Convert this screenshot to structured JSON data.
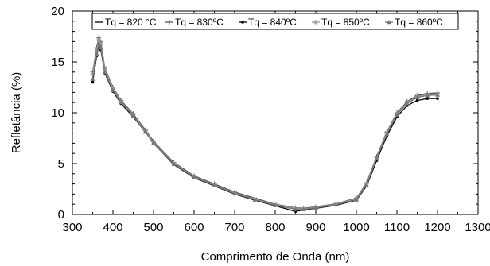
{
  "chart_data": {
    "type": "line",
    "xlabel": "Comprimento de Onda (nm)",
    "ylabel": "Refletância (%)",
    "xlim": [
      300,
      1300
    ],
    "ylim": [
      0,
      20
    ],
    "xticks": [
      300,
      400,
      500,
      600,
      700,
      800,
      900,
      1000,
      1100,
      1200,
      1300
    ],
    "yticks": [
      0,
      5,
      10,
      15,
      20
    ],
    "grid": false,
    "legend_position": "top",
    "series": [
      {
        "name": "Tq = 820 °C",
        "color": "#000000",
        "marker": "none",
        "x": [
          350,
          360,
          365,
          370,
          380,
          400,
          420,
          450,
          480,
          500,
          550,
          600,
          650,
          700,
          750,
          800,
          850,
          870,
          900,
          950,
          1000,
          1025,
          1050,
          1075,
          1100,
          1125,
          1150,
          1175,
          1200
        ],
        "y": [
          13.5,
          16.0,
          16.9,
          16.6,
          14.2,
          12.3,
          11.1,
          9.8,
          8.2,
          7.1,
          5.0,
          3.7,
          2.9,
          2.1,
          1.5,
          0.9,
          0.55,
          0.5,
          0.65,
          0.95,
          1.5,
          3.0,
          5.6,
          8.0,
          9.9,
          11.0,
          11.6,
          11.85,
          11.9
        ]
      },
      {
        "name": "Tq = 830ºC",
        "color": "#555555",
        "marker": "plus",
        "x": [
          350,
          360,
          365,
          370,
          380,
          400,
          420,
          450,
          480,
          500,
          550,
          600,
          650,
          700,
          750,
          800,
          850,
          870,
          900,
          950,
          1000,
          1025,
          1050,
          1075,
          1100,
          1125,
          1150,
          1175,
          1200
        ],
        "y": [
          14.0,
          16.4,
          17.4,
          17.0,
          14.4,
          12.5,
          11.2,
          9.9,
          8.3,
          7.2,
          5.1,
          3.8,
          3.0,
          2.2,
          1.6,
          1.0,
          0.65,
          0.6,
          0.75,
          1.05,
          1.6,
          3.1,
          5.7,
          8.1,
          10.0,
          11.1,
          11.7,
          11.9,
          11.95
        ]
      },
      {
        "name": "Tq = 840ºC",
        "color": "#000000",
        "marker": "dot",
        "x": [
          350,
          360,
          365,
          370,
          380,
          400,
          420,
          450,
          480,
          500,
          550,
          600,
          650,
          700,
          750,
          800,
          850,
          870,
          900,
          950,
          1000,
          1025,
          1050,
          1075,
          1100,
          1125,
          1150,
          1175,
          1200
        ],
        "y": [
          13.0,
          15.6,
          16.6,
          16.2,
          13.9,
          12.1,
          10.9,
          9.6,
          8.1,
          7.0,
          4.9,
          3.6,
          2.8,
          2.0,
          1.4,
          0.85,
          0.3,
          0.45,
          0.6,
          0.9,
          1.4,
          2.8,
          5.3,
          7.7,
          9.6,
          10.7,
          11.2,
          11.4,
          11.4
        ]
      },
      {
        "name": "Tq = 850ºC",
        "color": "#999999",
        "marker": "star",
        "x": [
          350,
          360,
          365,
          370,
          380,
          400,
          420,
          450,
          480,
          500,
          550,
          600,
          650,
          700,
          750,
          800,
          850,
          870,
          900,
          950,
          1000,
          1025,
          1050,
          1075,
          1100,
          1125,
          1150,
          1175,
          1200
        ],
        "y": [
          13.8,
          16.2,
          17.2,
          16.8,
          14.3,
          12.4,
          11.1,
          9.8,
          8.2,
          7.1,
          5.0,
          3.7,
          2.9,
          2.1,
          1.5,
          0.95,
          0.6,
          0.55,
          0.7,
          1.0,
          1.55,
          3.0,
          5.6,
          8.0,
          9.9,
          11.0,
          11.6,
          11.8,
          11.85
        ]
      },
      {
        "name": "Tq = 860ºC",
        "color": "#777777",
        "marker": "triangle",
        "x": [
          350,
          360,
          365,
          370,
          380,
          400,
          420,
          450,
          480,
          500,
          550,
          600,
          650,
          700,
          750,
          800,
          850,
          870,
          900,
          950,
          1000,
          1025,
          1050,
          1075,
          1100,
          1125,
          1150,
          1175,
          1200
        ],
        "y": [
          13.3,
          15.8,
          16.8,
          16.4,
          14.0,
          12.2,
          11.0,
          9.7,
          8.1,
          7.0,
          4.95,
          3.65,
          2.85,
          2.05,
          1.45,
          0.9,
          0.5,
          0.5,
          0.65,
          0.95,
          1.45,
          2.9,
          5.5,
          7.9,
          9.8,
          10.9,
          11.5,
          11.7,
          11.75
        ]
      }
    ]
  }
}
